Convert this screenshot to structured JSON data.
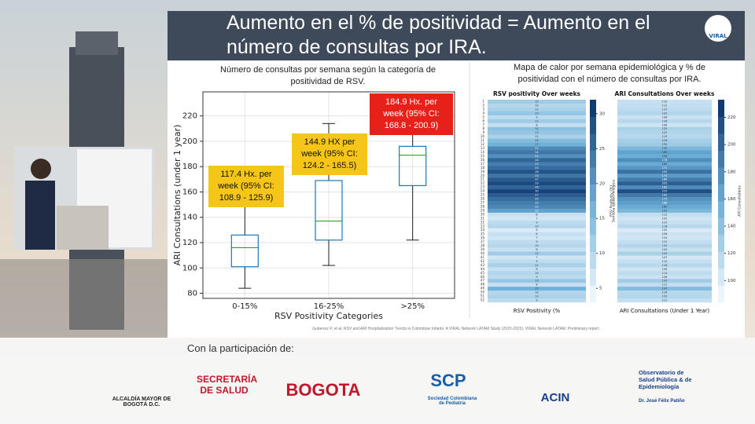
{
  "header": {
    "title": "Aumento en el % de positividad = Aumento en el número de consultas por IRA.",
    "logo": "VIRAL"
  },
  "chart_data": [
    {
      "type": "box",
      "title": "Número de consultas por semana según la categoría de positividad de RSV.",
      "x_label": "RSV Positivity Categories",
      "y_label": "ARI Consultations (under 1 year)",
      "categories": [
        "0-15%",
        "16-25%",
        ">25%"
      ],
      "boxes": [
        {
          "low": 84,
          "q1": 101,
          "median": 116,
          "q3": 126,
          "high": 150
        },
        {
          "low": 102,
          "q1": 122,
          "median": 137,
          "q3": 169,
          "high": 214
        },
        {
          "low": 122,
          "q1": 165,
          "median": 189,
          "q3": 196,
          "high": 220
        }
      ],
      "box_color": "#1f77b4",
      "median_color": "#2ca02c",
      "ylim": [
        76,
        239
      ],
      "yticks": [
        80,
        100,
        120,
        140,
        160,
        180,
        200,
        220
      ],
      "grid": true,
      "annotations": [
        {
          "text": "117.4 Hx. per week (95% CI: 108.9 - 125.9)",
          "color": "#f5c518"
        },
        {
          "text": "144.9 HX per week (95% CI: 124.2 - 165.5)",
          "color": "#f5c518"
        },
        {
          "text": "184.9 Hx. per week (95% CI: 168.8 - 200.9)",
          "color": "#e8201a"
        }
      ]
    },
    {
      "type": "heatmap",
      "title": "Mapa de calor por semana epidemiológica y % de positividad con el número de consultas por IRA.",
      "y_label": "Semana epidemiológica",
      "categories": [
        1,
        2,
        3,
        4,
        5,
        6,
        7,
        8,
        9,
        10,
        11,
        12,
        13,
        14,
        15,
        16,
        17,
        18,
        19,
        20,
        21,
        22,
        23,
        24,
        25,
        26,
        27,
        28,
        29,
        30,
        31,
        32,
        33,
        34,
        35,
        36,
        37,
        38,
        39,
        40,
        41,
        42,
        43,
        44,
        45,
        46,
        47,
        48,
        49,
        50,
        51,
        52
      ],
      "series": [
        {
          "name": "RSV positivity Over weeks",
          "x_label": "RSV Positivity (%",
          "colorbar_label": "RSV Positivity (%)",
          "values": [
            12,
            10,
            11,
            13,
            9,
            12,
            8,
            14,
            13,
            11,
            15,
            17,
            22,
            24,
            21,
            26,
            23,
            25,
            28,
            24,
            27,
            29,
            26,
            30,
            27,
            25,
            23,
            22,
            19,
            8,
            7,
            9,
            10,
            6,
            8,
            7,
            9,
            10,
            8,
            12,
            7,
            9,
            11,
            8,
            10,
            9,
            13,
            8,
            17,
            10,
            11,
            9
          ],
          "lim": [
            3,
            32
          ],
          "ticks": [
            5,
            10,
            15,
            20,
            25,
            30
          ]
        },
        {
          "name": "ARI Consultations Over weeks",
          "x_label": "ARI Consultations (Under 1 Year)",
          "colorbar_label": "ARI Consultations",
          "values": [
            110,
            112,
            115,
            120,
            108,
            118,
            106,
            125,
            122,
            119,
            128,
            132,
            150,
            165,
            158,
            178,
            160,
            172,
            195,
            170,
            188,
            205,
            180,
            215,
            190,
            175,
            168,
            160,
            150,
            112,
            105,
            110,
            118,
            100,
            108,
            104,
            112,
            120,
            109,
            125,
            103,
            110,
            118,
            106,
            114,
            108,
            130,
            112,
            145,
            118,
            120,
            111
          ],
          "lim": [
            84,
            233
          ],
          "ticks": [
            100,
            120,
            140,
            160,
            180,
            200,
            220
          ]
        }
      ],
      "colors": [
        "#f7fbff",
        "#6baed6",
        "#08306b"
      ]
    }
  ],
  "citation": "Gutierrez P, et al. RSV and ARI Hospitalization Trends in Colombian Infants: A VIRAL Network LATAM Study (2022-2023). VIRAL Network LATAM. Preliminary report.",
  "footer": {
    "heading": "Con la participación de:",
    "logos": [
      "ALCALDÍA MAYOR DE BOGOTÁ D.C.",
      "SECRETARÍA DE SALUD",
      "BOGOTA",
      "SCP",
      "Sociedad Colombiana de Pediatría",
      "ACIN",
      "Observatorio de Salud Pública & de Epidemiología",
      "Dr. José Félix Patiño"
    ]
  }
}
